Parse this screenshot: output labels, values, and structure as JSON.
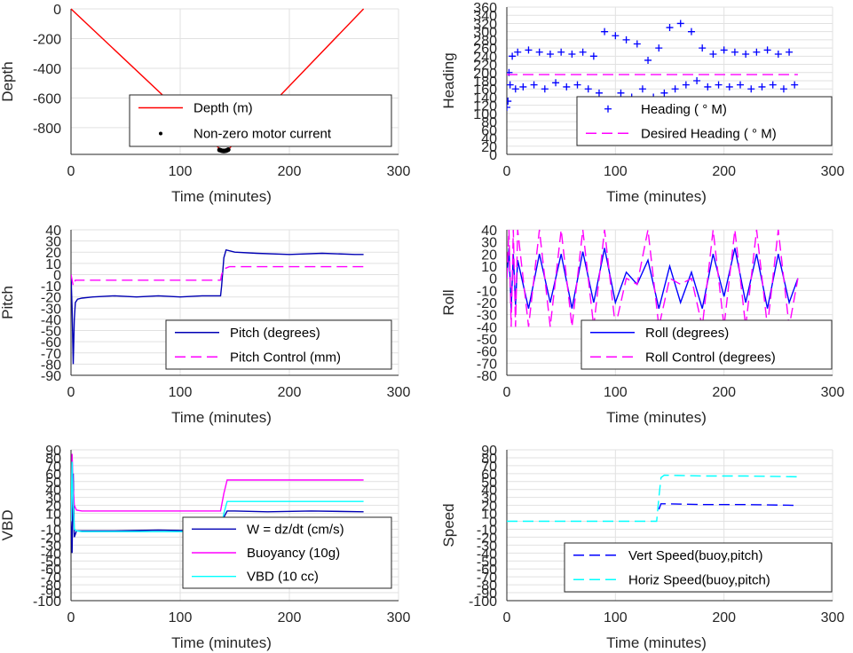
{
  "colors": {
    "grid": "#e1e1e1",
    "axis": "#262626",
    "red": "#ff0000",
    "blue": "#0000ff",
    "navy": "#0000b4",
    "magenta": "#ff00ff",
    "cyan": "#00ffff",
    "black": "#000000"
  },
  "chart_data": [
    {
      "id": "depth",
      "type": "line",
      "xlabel": "Time (minutes)",
      "ylabel": "Depth",
      "xlim": [
        0,
        300
      ],
      "ylim": [
        -980,
        0
      ],
      "xticks": [
        "0",
        "100",
        "200",
        "300"
      ],
      "yticks": [
        {
          "v": 0,
          "t": "0"
        },
        {
          "v": -200,
          "t": "-200"
        },
        {
          "v": -400,
          "t": "-400"
        },
        {
          "v": -600,
          "t": "-600"
        },
        {
          "v": -800,
          "t": "-800"
        }
      ],
      "grid": true,
      "legend_placement": "lower-right",
      "legend": [
        {
          "label": "Depth (m)",
          "style": "solid",
          "color": "red"
        },
        {
          "label": "Non-zero motor current",
          "style": "dot",
          "color": "black"
        }
      ],
      "series": [
        {
          "name": "Depth (m)",
          "color": "red",
          "style": "solid",
          "x": [
            0,
            138,
            143,
            268
          ],
          "y": [
            0,
            -955,
            -955,
            0
          ]
        },
        {
          "name": "Non-zero motor current",
          "color": "black",
          "style": "dots",
          "x": [
            136,
            137,
            138,
            139,
            140,
            141,
            142,
            143,
            144
          ],
          "y": [
            -950,
            -952,
            -955,
            -956,
            -957,
            -956,
            -955,
            -952,
            -948
          ]
        }
      ]
    },
    {
      "id": "heading",
      "type": "scatter",
      "xlabel": "Time (minutes)",
      "ylabel": "Heading",
      "xlim": [
        0,
        300
      ],
      "ylim": [
        0,
        360
      ],
      "xticks": [
        "0",
        "100",
        "200",
        "300"
      ],
      "yticks": [
        {
          "v": 0,
          "t": "0"
        },
        {
          "v": 20,
          "t": "20"
        },
        {
          "v": 40,
          "t": "40"
        },
        {
          "v": 60,
          "t": "60"
        },
        {
          "v": 80,
          "t": "80"
        },
        {
          "v": 100,
          "t": "100"
        },
        {
          "v": 120,
          "t": "120"
        },
        {
          "v": 140,
          "t": "140"
        },
        {
          "v": 160,
          "t": "160"
        },
        {
          "v": 180,
          "t": "180"
        },
        {
          "v": 200,
          "t": "200"
        },
        {
          "v": 220,
          "t": "220"
        },
        {
          "v": 240,
          "t": "240"
        },
        {
          "v": 260,
          "t": "260"
        },
        {
          "v": 280,
          "t": "280"
        },
        {
          "v": 300,
          "t": "300"
        },
        {
          "v": 320,
          "t": "320"
        },
        {
          "v": 340,
          "t": "340"
        },
        {
          "v": 360,
          "t": "360"
        }
      ],
      "grid": true,
      "legend_placement": "lower-right",
      "legend": [
        {
          "label": "Heading (   ° M)",
          "style": "plus",
          "color": "blue"
        },
        {
          "label": "Desired Heading (    ° M)",
          "style": "dash",
          "color": "magenta"
        }
      ],
      "series": [
        {
          "name": "Heading (   ° M)",
          "color": "blue",
          "style": "plus",
          "x": [
            0,
            1,
            2,
            3,
            5,
            8,
            10,
            15,
            20,
            25,
            30,
            35,
            40,
            45,
            50,
            55,
            60,
            65,
            70,
            75,
            80,
            85,
            90,
            95,
            100,
            105,
            110,
            115,
            120,
            125,
            130,
            135,
            140,
            145,
            150,
            155,
            160,
            165,
            170,
            175,
            180,
            185,
            190,
            195,
            200,
            205,
            210,
            215,
            220,
            225,
            230,
            235,
            240,
            245,
            250,
            255,
            260,
            265
          ],
          "y": [
            115,
            130,
            200,
            170,
            240,
            160,
            250,
            165,
            255,
            170,
            250,
            160,
            245,
            175,
            250,
            165,
            245,
            170,
            250,
            160,
            240,
            150,
            300,
            130,
            290,
            150,
            280,
            140,
            270,
            160,
            230,
            140,
            260,
            150,
            310,
            160,
            320,
            170,
            300,
            180,
            260,
            165,
            245,
            170,
            255,
            165,
            250,
            170,
            245,
            160,
            250,
            165,
            255,
            170,
            245,
            160,
            250,
            170
          ]
        },
        {
          "name": "Desired Heading (    ° M)",
          "color": "magenta",
          "style": "dash",
          "x": [
            0,
            268
          ],
          "y": [
            195,
            195
          ]
        }
      ]
    },
    {
      "id": "pitch",
      "type": "line",
      "xlabel": "Time (minutes)",
      "ylabel": "Pitch",
      "xlim": [
        0,
        300
      ],
      "ylim": [
        -90,
        40
      ],
      "xticks": [
        "0",
        "100",
        "200",
        "300"
      ],
      "yticks": [
        {
          "v": 40,
          "t": "40"
        },
        {
          "v": 30,
          "t": "30"
        },
        {
          "v": 20,
          "t": "20"
        },
        {
          "v": 10,
          "t": "10"
        },
        {
          "v": 0,
          "t": "0"
        },
        {
          "v": -10,
          "t": "-10"
        },
        {
          "v": -20,
          "t": "-20"
        },
        {
          "v": -30,
          "t": "-30"
        },
        {
          "v": -40,
          "t": "-40"
        },
        {
          "v": -50,
          "t": "-50"
        },
        {
          "v": -60,
          "t": "-60"
        },
        {
          "v": -70,
          "t": "-70"
        },
        {
          "v": -80,
          "t": "-80"
        },
        {
          "v": -90,
          "t": "-90"
        }
      ],
      "grid": true,
      "legend_placement": "lower-right",
      "legend": [
        {
          "label": "Pitch (degrees)",
          "style": "solid",
          "color": "navy"
        },
        {
          "label": "Pitch Control (mm)",
          "style": "dash",
          "color": "magenta"
        }
      ],
      "series": [
        {
          "name": "Pitch (degrees)",
          "color": "navy",
          "style": "solid",
          "x": [
            0,
            1,
            2,
            3,
            4,
            6,
            10,
            20,
            40,
            60,
            80,
            100,
            120,
            137,
            138,
            140,
            142,
            150,
            170,
            200,
            230,
            260,
            268
          ],
          "y": [
            0,
            -30,
            -80,
            -40,
            -25,
            -22,
            -21,
            -20,
            -19,
            -20,
            -19,
            -20,
            -19,
            -19,
            -10,
            15,
            22,
            20,
            19,
            18,
            19,
            18,
            18
          ]
        },
        {
          "name": "Pitch Control (mm)",
          "color": "magenta",
          "style": "dash",
          "x": [
            0,
            2,
            4,
            10,
            137,
            138,
            140,
            145,
            268
          ],
          "y": [
            0,
            -10,
            -5,
            -5,
            -5,
            0,
            5,
            7,
            7
          ]
        }
      ]
    },
    {
      "id": "roll",
      "type": "line",
      "xlabel": "Time (minutes)",
      "ylabel": "Roll",
      "xlim": [
        0,
        300
      ],
      "ylim": [
        -80,
        40
      ],
      "xticks": [
        "0",
        "100",
        "200",
        "300"
      ],
      "yticks": [
        {
          "v": 40,
          "t": "40"
        },
        {
          "v": 30,
          "t": "30"
        },
        {
          "v": 20,
          "t": "20"
        },
        {
          "v": 10,
          "t": "10"
        },
        {
          "v": 0,
          "t": "0"
        },
        {
          "v": -10,
          "t": "-10"
        },
        {
          "v": -20,
          "t": "-20"
        },
        {
          "v": -30,
          "t": "-30"
        },
        {
          "v": -40,
          "t": "-40"
        },
        {
          "v": -50,
          "t": "-50"
        },
        {
          "v": -60,
          "t": "-60"
        },
        {
          "v": -70,
          "t": "-70"
        },
        {
          "v": -80,
          "t": "-80"
        }
      ],
      "grid": true,
      "legend_placement": "lower-right",
      "legend": [
        {
          "label": "Roll (degrees)",
          "style": "solid",
          "color": "blue"
        },
        {
          "label": "Roll Control (degrees)",
          "style": "dash",
          "color": "magenta"
        }
      ],
      "series": [
        {
          "name": "Roll (degrees)",
          "color": "blue",
          "style": "solid",
          "x": [
            0,
            2,
            4,
            6,
            8,
            10,
            20,
            30,
            40,
            50,
            60,
            70,
            80,
            90,
            100,
            110,
            120,
            130,
            140,
            150,
            160,
            170,
            180,
            190,
            200,
            210,
            220,
            230,
            240,
            250,
            260,
            268
          ],
          "y": [
            0,
            25,
            -25,
            20,
            -22,
            15,
            -25,
            20,
            -20,
            20,
            -25,
            22,
            -20,
            25,
            -20,
            5,
            -5,
            15,
            -25,
            10,
            -20,
            5,
            -25,
            20,
            -15,
            25,
            -20,
            20,
            -25,
            20,
            -20,
            0
          ]
        },
        {
          "name": "Roll Control (degrees)",
          "color": "magenta",
          "style": "dash",
          "x": [
            0,
            2,
            4,
            6,
            8,
            10,
            20,
            30,
            40,
            50,
            60,
            70,
            80,
            90,
            100,
            110,
            120,
            130,
            140,
            150,
            160,
            170,
            180,
            190,
            200,
            210,
            220,
            230,
            240,
            250,
            260,
            268
          ],
          "y": [
            0,
            40,
            -40,
            40,
            -40,
            40,
            -40,
            40,
            -40,
            40,
            -40,
            40,
            -40,
            40,
            -40,
            0,
            -5,
            40,
            -40,
            0,
            -5,
            0,
            -40,
            40,
            -40,
            40,
            -40,
            40,
            -40,
            40,
            -40,
            0
          ]
        }
      ]
    },
    {
      "id": "vbd",
      "type": "line",
      "xlabel": "Time (minutes)",
      "ylabel": "VBD",
      "xlim": [
        0,
        300
      ],
      "ylim": [
        -100,
        90
      ],
      "xticks": [
        "0",
        "100",
        "200",
        "300"
      ],
      "yticks": [
        {
          "v": 90,
          "t": "90"
        },
        {
          "v": 80,
          "t": "80"
        },
        {
          "v": 70,
          "t": "70"
        },
        {
          "v": 60,
          "t": "60"
        },
        {
          "v": 50,
          "t": "50"
        },
        {
          "v": 40,
          "t": "40"
        },
        {
          "v": 30,
          "t": "30"
        },
        {
          "v": 20,
          "t": "20"
        },
        {
          "v": 10,
          "t": "10"
        },
        {
          "v": 0,
          "t": "0"
        },
        {
          "v": -10,
          "t": "-10"
        },
        {
          "v": -20,
          "t": "-20"
        },
        {
          "v": -30,
          "t": "-30"
        },
        {
          "v": -40,
          "t": "-40"
        },
        {
          "v": -50,
          "t": "-50"
        },
        {
          "v": -60,
          "t": "-60"
        },
        {
          "v": -70,
          "t": "-70"
        },
        {
          "v": -80,
          "t": "-80"
        },
        {
          "v": -90,
          "t": "-90"
        },
        {
          "v": -100,
          "t": "-100"
        }
      ],
      "grid": true,
      "legend_placement": "lower-right",
      "legend": [
        {
          "label": "W = dz/dt (cm/s)",
          "style": "solid",
          "color": "navy"
        },
        {
          "label": "Buoyancy (10g)",
          "style": "solid",
          "color": "magenta"
        },
        {
          "label": "VBD (10 cc)",
          "style": "solid",
          "color": "cyan"
        }
      ],
      "series": [
        {
          "name": "W = dz/dt (cm/s)",
          "color": "navy",
          "style": "solid",
          "x": [
            0,
            1,
            2,
            3,
            5,
            10,
            40,
            80,
            120,
            137,
            140,
            143,
            150,
            180,
            220,
            268
          ],
          "y": [
            0,
            -40,
            60,
            -20,
            -12,
            -12,
            -12,
            -11,
            -12,
            -12,
            5,
            13,
            13,
            12,
            13,
            12
          ]
        },
        {
          "name": "Buoyancy (10g)",
          "color": "magenta",
          "style": "solid",
          "x": [
            0,
            1,
            2,
            3,
            5,
            10,
            60,
            137,
            140,
            143,
            268
          ],
          "y": [
            0,
            85,
            40,
            20,
            14,
            13,
            13,
            13,
            35,
            52,
            52
          ]
        },
        {
          "name": "VBD (10 cc)",
          "color": "cyan",
          "style": "solid",
          "x": [
            0,
            1,
            2,
            3,
            5,
            10,
            60,
            137,
            140,
            143,
            268
          ],
          "y": [
            0,
            75,
            20,
            -10,
            -12,
            -13,
            -13,
            -13,
            10,
            25,
            25
          ]
        }
      ]
    },
    {
      "id": "speed",
      "type": "line",
      "xlabel": "Time (minutes)",
      "ylabel": "Speed",
      "xlim": [
        0,
        300
      ],
      "ylim": [
        -100,
        90
      ],
      "xticks": [
        "0",
        "100",
        "200",
        "300"
      ],
      "yticks": [
        {
          "v": 90,
          "t": "90"
        },
        {
          "v": 80,
          "t": "80"
        },
        {
          "v": 70,
          "t": "70"
        },
        {
          "v": 60,
          "t": "60"
        },
        {
          "v": 50,
          "t": "50"
        },
        {
          "v": 40,
          "t": "40"
        },
        {
          "v": 30,
          "t": "30"
        },
        {
          "v": 20,
          "t": "20"
        },
        {
          "v": 10,
          "t": "10"
        },
        {
          "v": 0,
          "t": "0"
        },
        {
          "v": -10,
          "t": "-10"
        },
        {
          "v": -20,
          "t": "-20"
        },
        {
          "v": -30,
          "t": "-30"
        },
        {
          "v": -40,
          "t": "-40"
        },
        {
          "v": -50,
          "t": "-50"
        },
        {
          "v": -60,
          "t": "-60"
        },
        {
          "v": -70,
          "t": "-70"
        },
        {
          "v": -80,
          "t": "-80"
        },
        {
          "v": -90,
          "t": "-90"
        },
        {
          "v": -100,
          "t": "-100"
        }
      ],
      "grid": true,
      "legend_placement": "lower-right",
      "legend": [
        {
          "label": "Vert Speed(buoy,pitch)",
          "style": "dash",
          "color": "blue"
        },
        {
          "label": "Horiz Speed(buoy,pitch)",
          "style": "dash",
          "color": "cyan"
        }
      ],
      "series": [
        {
          "name": "Vert Speed(buoy,pitch)",
          "color": "blue",
          "style": "dash",
          "x": [
            140,
            142,
            145,
            180,
            220,
            268
          ],
          "y": [
            15,
            22,
            22,
            21,
            21,
            20
          ]
        },
        {
          "name": "Horiz Speed(buoy,pitch)",
          "color": "cyan",
          "style": "dash",
          "x": [
            0,
            60,
            120,
            138,
            140,
            142,
            145,
            180,
            220,
            268
          ],
          "y": [
            0,
            0,
            0,
            0,
            30,
            55,
            58,
            57,
            57,
            56
          ]
        }
      ]
    }
  ]
}
